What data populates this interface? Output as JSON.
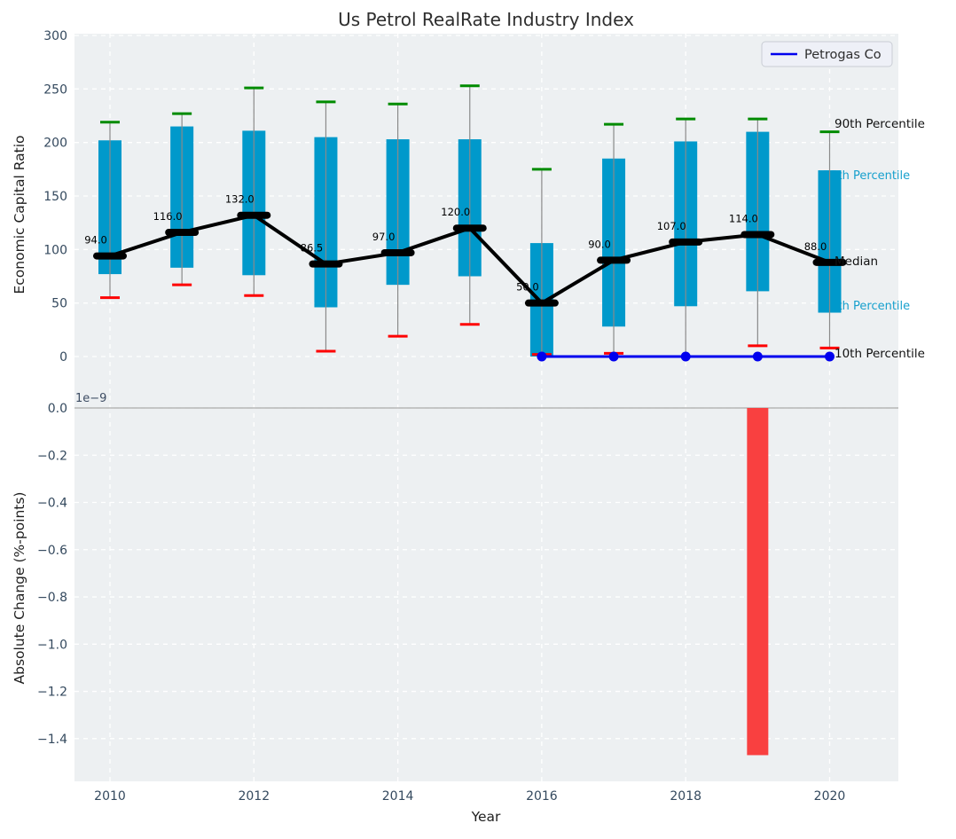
{
  "figure_title": "Us Petrol RealRate Industry Index",
  "colors": {
    "plot_background": "#edf0f2",
    "grid": "#ffffff",
    "tick_text": "#34495e",
    "box_fill": "#0099cb",
    "whisker": "#8a8a8a",
    "cap_90th": "#008b00",
    "cap_10th": "#fe0000",
    "median_line": "#000000",
    "petrogas_line": "#0000ee",
    "negative_bar": "#f94040",
    "cyan_label": "#17a0cd",
    "zero_line": "#b5b5b5"
  },
  "chart_data": [
    {
      "type": "box-percentile-with-median-line",
      "title": "Us Petrol RealRate Industry Index",
      "ylabel": "Economic Capital Ratio",
      "xlabel": "",
      "ylim": [
        0,
        300
      ],
      "yticks": [
        0,
        50,
        100,
        150,
        200,
        250,
        300
      ],
      "grid": "white dashed on light-gray panel, horizontal every 50, vertical every 2 years",
      "legend": {
        "label": "Petrogas Co",
        "position": "upper right"
      },
      "years": [
        2010,
        2011,
        2012,
        2013,
        2014,
        2015,
        2016,
        2017,
        2018,
        2019,
        2020
      ],
      "series": [
        {
          "name": "90th Percentile",
          "values": [
            219,
            227,
            251,
            238,
            236,
            253,
            175,
            217,
            222,
            222,
            210
          ]
        },
        {
          "name": "75th Percentile",
          "values": [
            202,
            215,
            211,
            205,
            203,
            203,
            106,
            185,
            201,
            210,
            174
          ]
        },
        {
          "name": "Median",
          "values": [
            94.0,
            116.0,
            132.0,
            86.5,
            97.0,
            120.0,
            50.0,
            90.0,
            107.0,
            114.0,
            88.0
          ]
        },
        {
          "name": "25th Percentile",
          "values": [
            77,
            83,
            76,
            46,
            67,
            75,
            0,
            28,
            47,
            61,
            41
          ]
        },
        {
          "name": "10th Percentile",
          "values": [
            55,
            67,
            57,
            5,
            19,
            30,
            2,
            3,
            0,
            10,
            8
          ]
        }
      ],
      "median_point_labels": [
        "94.0",
        "116.0",
        "132.0",
        "86.5",
        "97.0",
        "120.0",
        "50.0",
        "90.0",
        "107.0",
        "114.0",
        "88.0"
      ],
      "petrogas_co": {
        "years": [
          2016,
          2017,
          2018,
          2019,
          2020
        ],
        "values": [
          0,
          0,
          0,
          0,
          0
        ]
      },
      "annotations": [
        {
          "text": "90th Percentile",
          "color": "#111111"
        },
        {
          "text": "75th Percentile",
          "color": "#17a0cd"
        },
        {
          "text": "Median",
          "color": "#111111"
        },
        {
          "text": "25th Percentile",
          "color": "#17a0cd"
        },
        {
          "text": "10th Percentile",
          "color": "#111111"
        }
      ]
    },
    {
      "type": "bar",
      "title": "",
      "ylabel": "Absolute Change (%-points)",
      "xlabel": "Year",
      "offset_label": "1e−9",
      "ylim_1e9": [
        -1.58,
        0.06
      ],
      "ytick_labels": [
        "0.0",
        "−0.2",
        "−0.4",
        "−0.6",
        "−0.8",
        "−1.0",
        "−1.2",
        "−1.4"
      ],
      "ytick_values_1e9": [
        0,
        -0.2,
        -0.4,
        -0.6,
        -0.8,
        -1.0,
        -1.2,
        -1.4
      ],
      "xtick_labels": [
        "2010",
        "2012",
        "2014",
        "2016",
        "2018",
        "2020"
      ],
      "xtick_values": [
        2010,
        2012,
        2014,
        2016,
        2018,
        2020
      ],
      "bars": [
        {
          "year": 2019,
          "value_1e9": -1.47
        }
      ],
      "zero_line": true
    }
  ]
}
